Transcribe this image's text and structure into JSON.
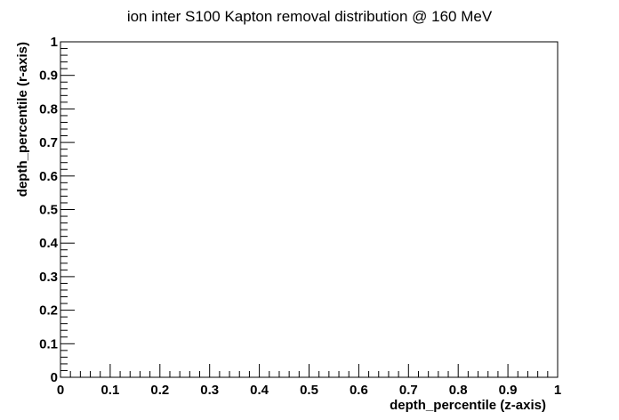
{
  "chart_data": {
    "type": "scatter",
    "title": "ion inter S100 Kapton removal distribution @ 160 MeV",
    "xlabel": "depth_percentile (z-axis)",
    "ylabel": "depth_percentile (r-axis)",
    "xlim": [
      0,
      1
    ],
    "ylim": [
      0,
      1
    ],
    "x_ticks": [
      "0",
      "0.1",
      "0.2",
      "0.3",
      "0.4",
      "0.5",
      "0.6",
      "0.7",
      "0.8",
      "0.9",
      "1"
    ],
    "y_ticks": [
      "0",
      "0.1",
      "0.2",
      "0.3",
      "0.4",
      "0.5",
      "0.6",
      "0.7",
      "0.8",
      "0.9",
      "1"
    ],
    "x_tick_values": [
      0,
      0.1,
      0.2,
      0.3,
      0.4,
      0.5,
      0.6,
      0.7,
      0.8,
      0.9,
      1
    ],
    "y_tick_values": [
      0,
      0.1,
      0.2,
      0.3,
      0.4,
      0.5,
      0.6,
      0.7,
      0.8,
      0.9,
      1
    ],
    "grid": false,
    "series": [
      {
        "x": [],
        "y": []
      }
    ]
  }
}
